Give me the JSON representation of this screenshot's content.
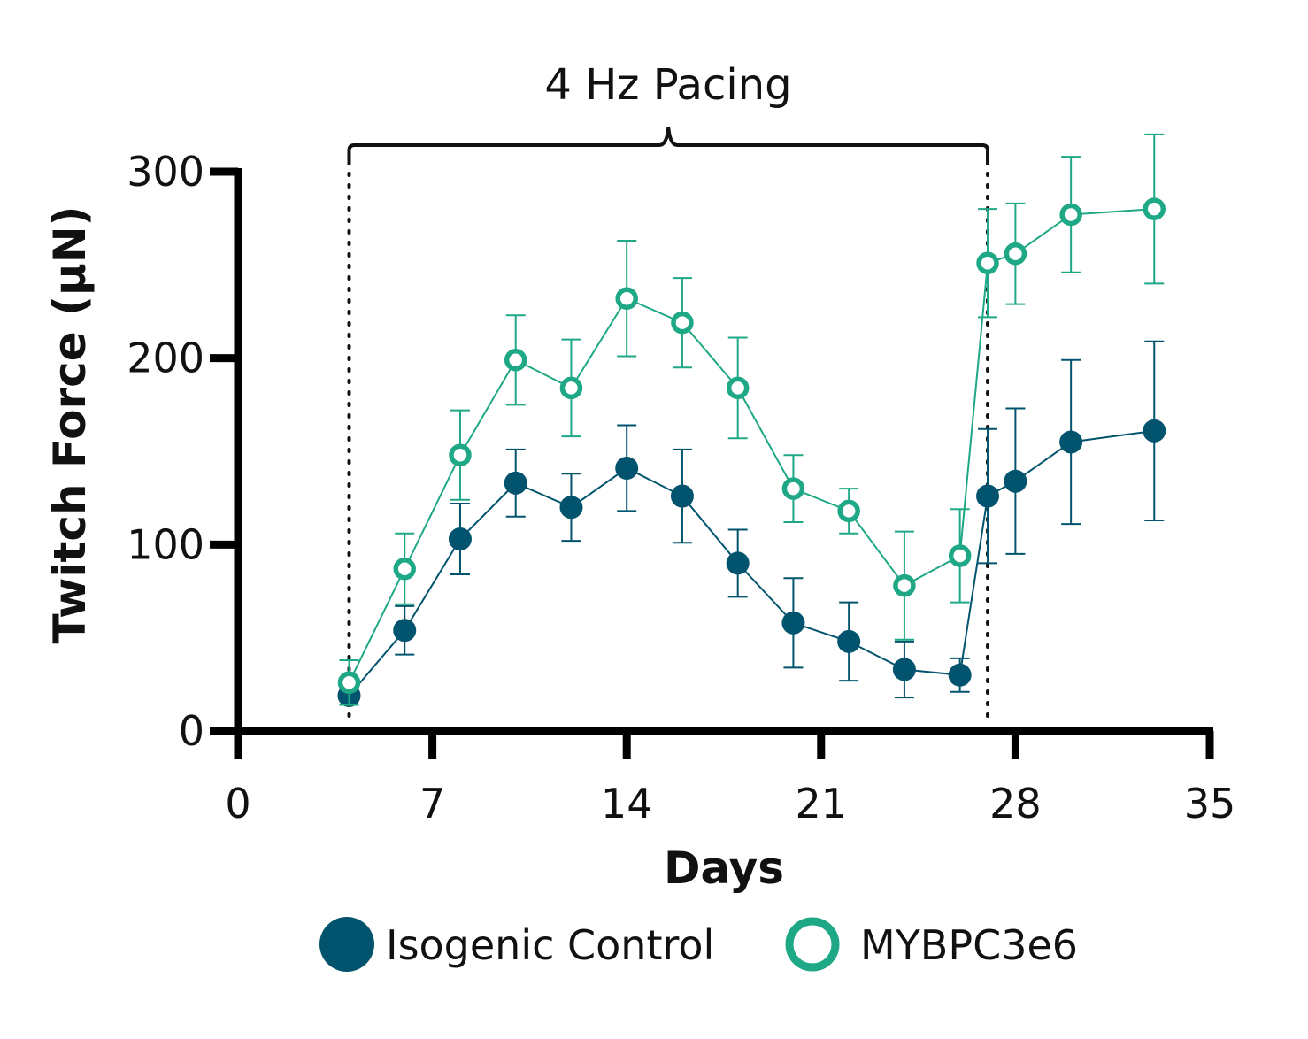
{
  "chart_data": {
    "type": "line",
    "title": "",
    "xlabel": "Days",
    "ylabel": "Twitch Force (μN)",
    "xlim": [
      0,
      35
    ],
    "ylim": [
      0,
      300
    ],
    "xticks": [
      0,
      7,
      14,
      21,
      28,
      35
    ],
    "yticks": [
      0,
      100,
      200,
      300
    ],
    "annotation": {
      "label": "4 Hz Pacing",
      "x_start": 4,
      "x_end": 27
    },
    "series": [
      {
        "name": "Isogenic Control",
        "color": "#02546e",
        "marker": "filled-circle",
        "x": [
          4,
          6,
          8,
          10,
          12,
          14,
          16,
          18,
          20,
          22,
          24,
          26,
          27,
          28,
          30,
          33
        ],
        "y": [
          19,
          54,
          103,
          133,
          120,
          141,
          126,
          90,
          58,
          48,
          33,
          30,
          126,
          134,
          155,
          161
        ],
        "err": [
          0,
          13,
          19,
          18,
          18,
          23,
          25,
          18,
          24,
          21,
          15,
          9,
          36,
          39,
          44,
          48
        ]
      },
      {
        "name": "MYBPC3e6",
        "color": "#1ea886",
        "marker": "open-circle",
        "x": [
          4,
          6,
          8,
          10,
          12,
          14,
          16,
          18,
          20,
          22,
          24,
          26,
          27,
          28,
          30,
          33
        ],
        "y": [
          26,
          87,
          148,
          199,
          184,
          232,
          219,
          184,
          130,
          118,
          78,
          94,
          251,
          256,
          277,
          280
        ],
        "err": [
          12,
          19,
          24,
          24,
          26,
          31,
          24,
          27,
          18,
          12,
          29,
          25,
          29,
          27,
          31,
          40
        ]
      }
    ]
  }
}
